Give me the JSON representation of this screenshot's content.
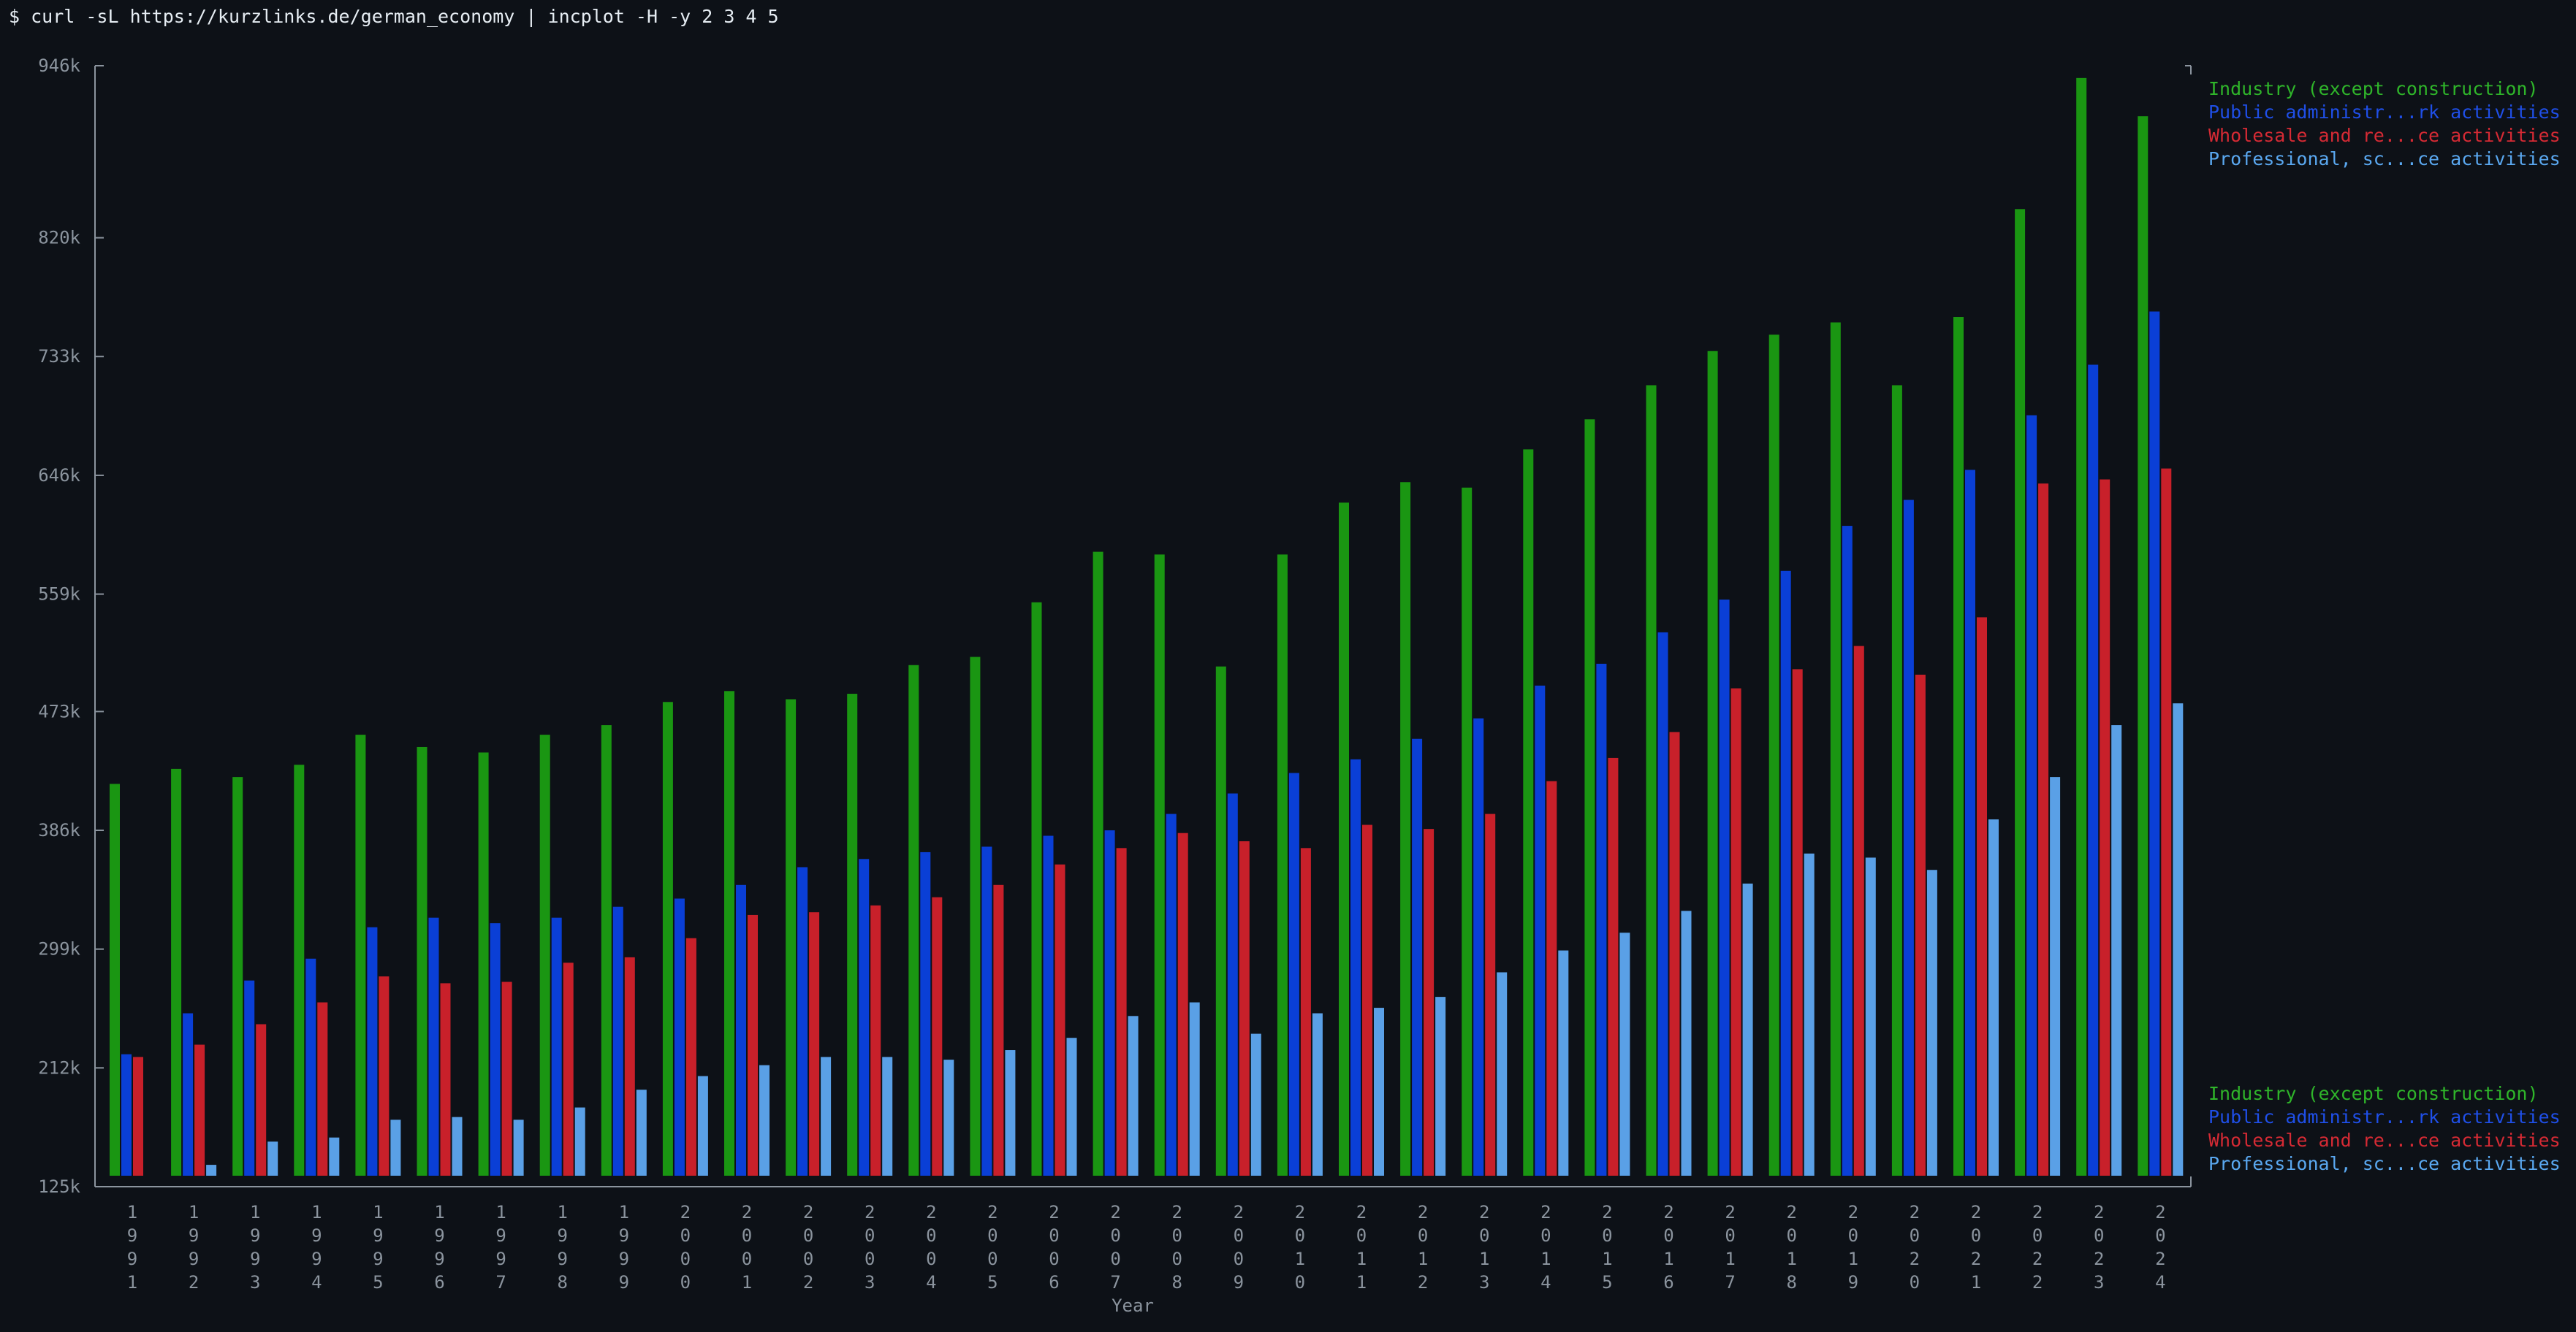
{
  "terminal": {
    "command": "$ curl -sL https://kurzlinks.de/german_economy | incplot -H -y 2 3 4 5"
  },
  "chart_data": {
    "type": "bar",
    "xlabel": "Year",
    "ylabel": "",
    "ylim": [
      125000,
      946000
    ],
    "y_ticks": [
      "125k",
      "212k",
      "299k",
      "386k",
      "473k",
      "559k",
      "646k",
      "733k",
      "820k",
      "946k"
    ],
    "y_tick_values": [
      125000,
      212000,
      299000,
      386000,
      473000,
      559000,
      646000,
      733000,
      820000,
      946000
    ],
    "categories": [
      "1991",
      "1992",
      "1993",
      "1994",
      "1995",
      "1996",
      "1997",
      "1998",
      "1999",
      "2000",
      "2001",
      "2002",
      "2003",
      "2004",
      "2005",
      "2006",
      "2007",
      "2008",
      "2009",
      "2010",
      "2011",
      "2012",
      "2013",
      "2014",
      "2015",
      "2016",
      "2017",
      "2018",
      "2019",
      "2020",
      "2021",
      "2022",
      "2023",
      "2024"
    ],
    "legend_position": "top-right and bottom-right",
    "series": [
      {
        "name": "Industry (except construction)",
        "color": "#1a9612",
        "values": [
          420000,
          431000,
          425000,
          434000,
          456000,
          447000,
          443000,
          456000,
          463000,
          480000,
          488000,
          482000,
          486000,
          507000,
          513000,
          553000,
          590000,
          588000,
          506000,
          588000,
          626000,
          641000,
          637000,
          665000,
          687000,
          712000,
          737000,
          749000,
          758000,
          712000,
          762000,
          841000,
          937000,
          909000
        ]
      },
      {
        "name": "Public administr...rk activities",
        "color": "#0a3fd6",
        "values": [
          222000,
          252000,
          276000,
          292000,
          315000,
          322000,
          318000,
          322000,
          330000,
          336000,
          346000,
          359000,
          365000,
          370000,
          374000,
          382000,
          386000,
          398000,
          413000,
          428000,
          438000,
          453000,
          468000,
          492000,
          508000,
          531000,
          555000,
          576000,
          609000,
          628000,
          650000,
          690000,
          727000,
          766000
        ]
      },
      {
        "name": "Wholesale and re...ce activities",
        "color": "#c8202a",
        "values": [
          220000,
          229000,
          244000,
          260000,
          279000,
          274000,
          275000,
          289000,
          293000,
          307000,
          324000,
          326000,
          331000,
          337000,
          346000,
          361000,
          373000,
          384000,
          378000,
          373000,
          390000,
          387000,
          398000,
          422000,
          439000,
          458000,
          490000,
          504000,
          521000,
          500000,
          542000,
          640000,
          643000,
          651000
        ]
      },
      {
        "name": "Professional, sc...ce activities",
        "color": "#5aa0e6",
        "values": [
          127000,
          141000,
          158000,
          161000,
          174000,
          176000,
          174000,
          183000,
          196000,
          206000,
          214000,
          220000,
          220000,
          218000,
          225000,
          234000,
          250000,
          260000,
          237000,
          252000,
          256000,
          264000,
          282000,
          298000,
          311000,
          327000,
          347000,
          369000,
          366000,
          357000,
          394000,
          425000,
          463000,
          479000
        ]
      }
    ]
  }
}
